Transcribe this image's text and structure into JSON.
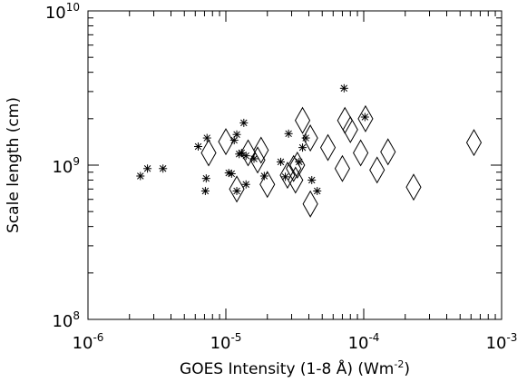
{
  "chart_data": {
    "type": "scatter",
    "title": "",
    "xlabel": "GOES Intensity (1-8 Å) (Wm",
    "xlabel_sup": "-2",
    "xlabel_close": ")",
    "ylabel": "Scale length (cm)",
    "xscale": "log",
    "yscale": "log",
    "xlim": [
      1e-06,
      0.001
    ],
    "ylim": [
      100000000.0,
      10000000000.0
    ],
    "grid": false,
    "x_ticks": [
      {
        "value": 1e-06,
        "base": "10",
        "exp": "-6"
      },
      {
        "value": 1e-05,
        "base": "10",
        "exp": "-5"
      },
      {
        "value": 0.0001,
        "base": "10",
        "exp": "-4"
      },
      {
        "value": 0.001,
        "base": "10",
        "exp": "-3"
      }
    ],
    "y_ticks": [
      {
        "value": 100000000.0,
        "base": "10",
        "exp": "8"
      },
      {
        "value": 1000000000.0,
        "base": "10",
        "exp": "9"
      },
      {
        "value": 10000000000.0,
        "base": "10",
        "exp": "10"
      }
    ],
    "series": [
      {
        "marker": "asterisk",
        "points": [
          [
            2.4e-06,
            850000000.0
          ],
          [
            2.7e-06,
            950000000.0
          ],
          [
            3.5e-06,
            950000000.0
          ],
          [
            6.3e-06,
            1320000000.0
          ],
          [
            7.3e-06,
            1500000000.0
          ],
          [
            7.2e-06,
            820000000.0
          ],
          [
            7.1e-06,
            680000000.0
          ],
          [
            1.05e-05,
            890000000.0
          ],
          [
            1.1e-05,
            880000000.0
          ],
          [
            1.15e-05,
            1450000000.0
          ],
          [
            1.2e-05,
            1580000000.0
          ],
          [
            1.25e-05,
            1180000000.0
          ],
          [
            1.3e-05,
            1200000000.0
          ],
          [
            1.35e-05,
            1880000000.0
          ],
          [
            1.4e-05,
            1150000000.0
          ],
          [
            1.2e-05,
            680000000.0
          ],
          [
            1.4e-05,
            750000000.0
          ],
          [
            1.6e-05,
            1100000000.0
          ],
          [
            1.9e-05,
            850000000.0
          ],
          [
            2.5e-05,
            1050000000.0
          ],
          [
            2.7e-05,
            840000000.0
          ],
          [
            2.85e-05,
            1600000000.0
          ],
          [
            3.4e-05,
            1050000000.0
          ],
          [
            3.6e-05,
            1300000000.0
          ],
          [
            3.8e-05,
            1500000000.0
          ],
          [
            4.2e-05,
            800000000.0
          ],
          [
            4.6e-05,
            680000000.0
          ],
          [
            7.2e-05,
            3150000000.0
          ],
          [
            0.000102,
            2050000000.0
          ]
        ]
      },
      {
        "marker": "diamond",
        "points": [
          [
            7.5e-06,
            1200000000.0
          ],
          [
            1e-05,
            1420000000.0
          ],
          [
            1.2e-05,
            700000000.0
          ],
          [
            1.45e-05,
            1200000000.0
          ],
          [
            1.7e-05,
            1080000000.0
          ],
          [
            1.8e-05,
            1250000000.0
          ],
          [
            2e-05,
            750000000.0
          ],
          [
            2.8e-05,
            860000000.0
          ],
          [
            3.1e-05,
            950000000.0
          ],
          [
            3.2e-05,
            800000000.0
          ],
          [
            3.3e-05,
            1000000000.0
          ],
          [
            3.6e-05,
            1950000000.0
          ],
          [
            4.1e-05,
            560000000.0
          ],
          [
            4.1e-05,
            1500000000.0
          ],
          [
            5.5e-05,
            1300000000.0
          ],
          [
            7e-05,
            950000000.0
          ],
          [
            7.3e-05,
            1950000000.0
          ],
          [
            8e-05,
            1700000000.0
          ],
          [
            9.5e-05,
            1200000000.0
          ],
          [
            0.000103,
            2000000000.0
          ],
          [
            0.000125,
            930000000.0
          ],
          [
            0.00015,
            1220000000.0
          ],
          [
            0.00023,
            720000000.0
          ],
          [
            0.00063,
            1400000000.0
          ]
        ]
      }
    ]
  }
}
